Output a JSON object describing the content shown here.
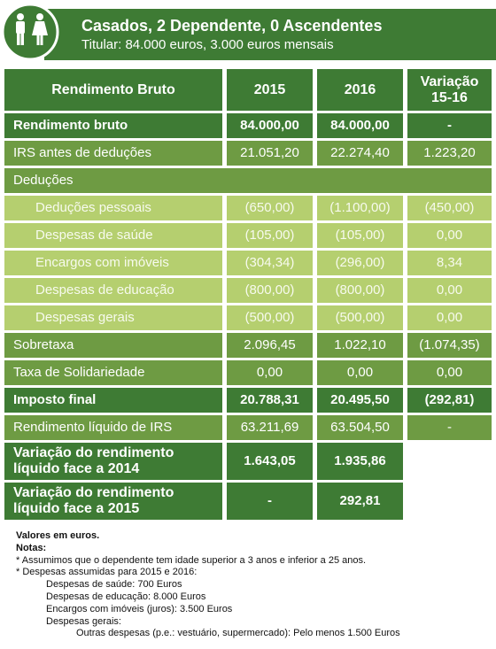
{
  "header": {
    "title": "Casados, 2 Dependente, 0 Ascendentes",
    "subtitle": "Titular: 84.000 euros, 3.000 euros mensais"
  },
  "table": {
    "columns": [
      "Rendimento Bruto",
      "2015",
      "2016",
      "Variação 15-16"
    ],
    "rows": [
      [
        "Rendimento bruto",
        "84.000,00",
        "84.000,00",
        "-"
      ],
      [
        "IRS antes de deduções",
        "21.051,20",
        "22.274,40",
        "1.223,20"
      ],
      [
        "Deduções"
      ],
      [
        "Deduções pessoais",
        "(650,00)",
        "(1.100,00)",
        "(450,00)"
      ],
      [
        "Despesas de saúde",
        "(105,00)",
        "(105,00)",
        "0,00"
      ],
      [
        "Encargos com imóveis",
        "(304,34)",
        "(296,00)",
        "8,34"
      ],
      [
        "Despesas de educação",
        "(800,00)",
        "(800,00)",
        "0,00"
      ],
      [
        "Despesas gerais",
        "(500,00)",
        "(500,00)",
        "0,00"
      ],
      [
        "Sobretaxa",
        "2.096,45",
        "1.022,10",
        "(1.074,35)"
      ],
      [
        "Taxa de Solidariedade",
        "0,00",
        "0,00",
        "0,00"
      ],
      [
        "Imposto final",
        "20.788,31",
        "20.495,50",
        "(292,81)"
      ],
      [
        "Rendimento líquido de IRS",
        "63.211,69",
        "63.504,50",
        "-"
      ],
      [
        "Variação do rendimento líquido face a 2014",
        "1.643,05",
        "1.935,86"
      ],
      [
        "Variação do rendimento líquido face a 2015",
        "-",
        "292,81"
      ]
    ]
  },
  "notes": {
    "units": "Valores em euros.",
    "heading": "Notas:",
    "items": [
      "Assumimos que o dependente tem idade superior a 3 anos e inferior a 25 anos.",
      "Despesas assumidas para 2015 e 2016:"
    ],
    "expenses": [
      "Despesas de saúde: 700 Euros",
      "Despesas de educação: 8.000 Euros",
      "Encargos com imóveis (juros): 3.500 Euros",
      "Despesas gerais:"
    ],
    "other": "Outras despesas (p.e.: vestuário, supermercado): Pelo menos 1.500 Euros"
  }
}
